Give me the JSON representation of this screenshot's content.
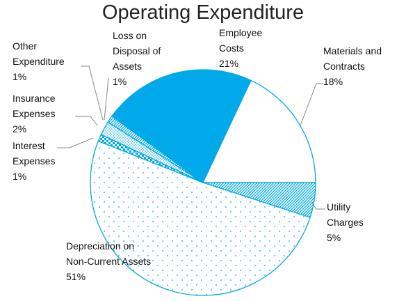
{
  "chart_data": {
    "type": "pie",
    "title": "Operating Expenditure",
    "categories": [
      "Employee Costs",
      "Materials and Contracts",
      "Utility Charges",
      "Depreciation on Non-Current Assets",
      "Interest Expenses",
      "Insurance Expenses",
      "Other Expenditure",
      "Loss on Disposal of Assets"
    ],
    "values": [
      21,
      18,
      5,
      51,
      1,
      2,
      1,
      1
    ],
    "value_labels": [
      "21%",
      "18%",
      "5%",
      "51%",
      "1%",
      "2%",
      "1%",
      "1%"
    ],
    "color": "#00a9ea"
  }
}
